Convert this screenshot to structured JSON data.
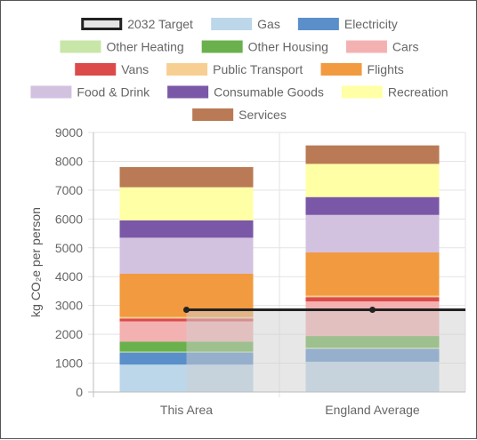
{
  "chart_data": {
    "type": "bar",
    "stacked": true,
    "categories": [
      "This Area",
      "England Average"
    ],
    "ylabel": "kg CO₂e per person",
    "ylim": [
      0,
      9000
    ],
    "yticks": [
      0,
      1000,
      2000,
      3000,
      4000,
      5000,
      6000,
      7000,
      8000,
      9000
    ],
    "grid": true,
    "legend_position": "top",
    "target": {
      "name": "2032 Target",
      "value": 2850,
      "color": "#222222",
      "fill": "#e5e5e5"
    },
    "series": [
      {
        "name": "Gas",
        "color": "#bcd7ea",
        "values": [
          950,
          1050
        ]
      },
      {
        "name": "Electricity",
        "color": "#5a8fc9",
        "values": [
          420,
          450
        ]
      },
      {
        "name": "Other Heating",
        "color": "#c8e6a8",
        "values": [
          30,
          40
        ]
      },
      {
        "name": "Other Housing",
        "color": "#6ab04c",
        "values": [
          350,
          400
        ]
      },
      {
        "name": "Cars",
        "color": "#f4b1b1",
        "values": [
          700,
          1200
        ]
      },
      {
        "name": "Vans",
        "color": "#dd4a4a",
        "values": [
          100,
          150
        ]
      },
      {
        "name": "Public Transport",
        "color": "#f7cf92",
        "values": [
          50,
          50
        ]
      },
      {
        "name": "Flights",
        "color": "#f29a3f",
        "values": [
          1500,
          1500
        ]
      },
      {
        "name": "Food & Drink",
        "color": "#d3c1e0",
        "values": [
          1250,
          1300
        ]
      },
      {
        "name": "Consumable Goods",
        "color": "#7b57a8",
        "values": [
          600,
          620
        ]
      },
      {
        "name": "Recreation",
        "color": "#ffffa6",
        "values": [
          1150,
          1150
        ]
      },
      {
        "name": "Services",
        "color": "#b97a55",
        "values": [
          700,
          640
        ]
      }
    ]
  }
}
